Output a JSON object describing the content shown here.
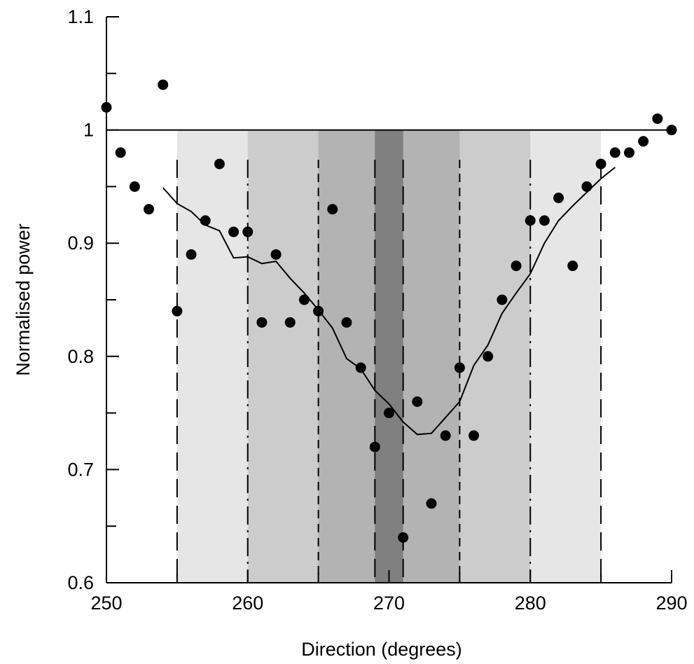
{
  "chart_data": {
    "type": "scatter",
    "xlabel": "Direction (degrees)",
    "ylabel": "Normalised power",
    "xlim": [
      250,
      290
    ],
    "ylim": [
      0.6,
      1.1
    ],
    "x_ticks": [
      250,
      260,
      270,
      280,
      290
    ],
    "x_tick_labels": [
      "250",
      "260",
      "270",
      "280",
      "290"
    ],
    "y_ticks": [
      0.6,
      0.7,
      0.8,
      0.9,
      1.0,
      1.1
    ],
    "y_tick_labels": [
      "0.6",
      "0.7",
      "0.8",
      "0.9",
      "1",
      "1.1"
    ],
    "grid": false,
    "reference_line": {
      "y": 1.0
    },
    "shaded_bands": [
      {
        "x": [
          255,
          285
        ],
        "color": "#e6e6e6"
      },
      {
        "x": [
          260,
          280
        ],
        "color": "#cccccc"
      },
      {
        "x": [
          265,
          275
        ],
        "color": "#b3b3b3"
      },
      {
        "x": [
          269,
          271
        ],
        "color": "#808080"
      }
    ],
    "vertical_lines": [
      {
        "x": 255,
        "style": "long-dash"
      },
      {
        "x": 260,
        "style": "dash-dot"
      },
      {
        "x": 265,
        "style": "short-dash"
      },
      {
        "x": 269,
        "style": "long-dash"
      },
      {
        "x": 271,
        "style": "long-dash"
      },
      {
        "x": 275,
        "style": "short-dash"
      },
      {
        "x": 280,
        "style": "dash-dot"
      },
      {
        "x": 285,
        "style": "long-dash"
      }
    ],
    "series": [
      {
        "type": "scatter",
        "color": "#000000",
        "x": [
          250,
          251,
          252,
          253,
          254,
          255,
          256,
          257,
          258,
          259,
          260,
          261,
          262,
          263,
          264,
          265,
          266,
          267,
          268,
          269,
          270,
          271,
          272,
          273,
          274,
          275,
          276,
          277,
          278,
          279,
          280,
          281,
          282,
          283,
          284,
          285,
          286,
          287,
          288,
          289,
          290
        ],
        "y": [
          1.02,
          0.98,
          0.95,
          0.93,
          1.04,
          0.84,
          0.89,
          0.92,
          0.97,
          0.91,
          0.91,
          0.83,
          0.89,
          0.83,
          0.85,
          0.84,
          0.93,
          0.83,
          0.79,
          0.72,
          0.75,
          0.64,
          0.76,
          0.67,
          0.73,
          0.79,
          0.73,
          0.8,
          0.85,
          0.88,
          0.92,
          0.92,
          0.94,
          0.88,
          0.95,
          0.97,
          0.98,
          0.98,
          0.99,
          1.01,
          1.0
        ]
      },
      {
        "type": "line",
        "color": "#000000",
        "x": [
          254,
          255,
          256,
          257,
          258,
          259,
          260,
          261,
          262,
          263,
          264,
          265,
          266,
          267,
          268,
          269,
          270,
          271,
          272,
          273,
          274,
          275,
          276,
          277,
          278,
          279,
          280,
          281,
          282,
          283,
          284,
          285,
          286
        ],
        "y": [
          0.949,
          0.935,
          0.928,
          0.916,
          0.911,
          0.887,
          0.888,
          0.882,
          0.884,
          0.869,
          0.856,
          0.841,
          0.825,
          0.798,
          0.789,
          0.77,
          0.758,
          0.742,
          0.731,
          0.732,
          0.746,
          0.76,
          0.792,
          0.81,
          0.838,
          0.856,
          0.873,
          0.9,
          0.92,
          0.933,
          0.945,
          0.957,
          0.967
        ]
      }
    ]
  }
}
